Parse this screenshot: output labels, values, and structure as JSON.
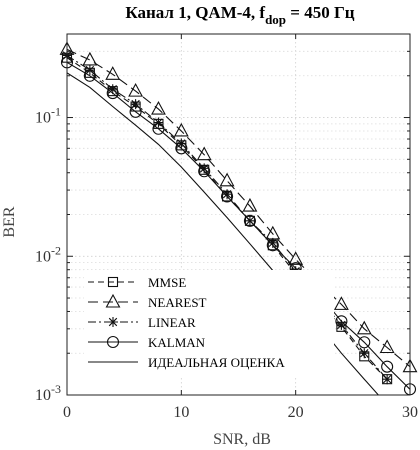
{
  "chart_data": {
    "type": "line",
    "title_main": "Канал 1, QAM-4, f",
    "title_sub": "dop",
    "title_tail": " = 450 Гц",
    "xlabel": "SNR, dB",
    "ylabel": "BER",
    "xlim": [
      0,
      30
    ],
    "ylim": [
      0.001,
      0.4
    ],
    "yscale": "log",
    "grid": true,
    "legend_position": "bottom-left",
    "x_ticks": [
      "0",
      "10",
      "20",
      "30"
    ],
    "y_ticks": [
      {
        "base": "10",
        "exp": "-1"
      },
      {
        "base": "10",
        "exp": "-2"
      },
      {
        "base": "10",
        "exp": "-3"
      }
    ],
    "series": [
      {
        "name": "MMSE",
        "marker": "square",
        "dash": "dash",
        "x": [
          0,
          2,
          4,
          6,
          8,
          10,
          12,
          14,
          16,
          18,
          20,
          22,
          24,
          26,
          28
        ],
        "y": [
          0.27,
          0.21,
          0.155,
          0.12,
          0.09,
          0.063,
          0.042,
          0.027,
          0.018,
          0.012,
          0.0075,
          0.0047,
          0.0031,
          0.0019,
          0.0013
        ]
      },
      {
        "name": "NEAREST",
        "marker": "triangle",
        "dash": "longdash",
        "x": [
          0,
          2,
          4,
          6,
          8,
          10,
          12,
          14,
          16,
          18,
          20,
          22,
          24,
          26,
          28,
          30
        ],
        "y": [
          0.31,
          0.26,
          0.205,
          0.155,
          0.115,
          0.08,
          0.054,
          0.035,
          0.023,
          0.0145,
          0.0095,
          0.0065,
          0.0045,
          0.003,
          0.0022,
          0.0016
        ]
      },
      {
        "name": "LINEAR",
        "marker": "star",
        "dash": "dashdot",
        "x": [
          0,
          2,
          4,
          6,
          8,
          10,
          12,
          14,
          16,
          18,
          20,
          22,
          24,
          26,
          28
        ],
        "y": [
          0.28,
          0.22,
          0.16,
          0.125,
          0.092,
          0.065,
          0.043,
          0.028,
          0.018,
          0.0125,
          0.0078,
          0.005,
          0.0032,
          0.002,
          0.0013
        ]
      },
      {
        "name": "KALMAN",
        "marker": "circle",
        "dash": "solid",
        "x": [
          0,
          2,
          4,
          6,
          8,
          10,
          12,
          14,
          16,
          18,
          20,
          22,
          24,
          26,
          28,
          30
        ],
        "y": [
          0.25,
          0.2,
          0.15,
          0.11,
          0.083,
          0.06,
          0.041,
          0.027,
          0.018,
          0.012,
          0.0082,
          0.0054,
          0.0034,
          0.0024,
          0.0016,
          0.0011
        ]
      },
      {
        "name": "ИДЕАЛЬНАЯ ОЦЕНКА",
        "marker": "none",
        "dash": "solid",
        "x": [
          0,
          2,
          4,
          6,
          8,
          10,
          12,
          14,
          16,
          18,
          20,
          22,
          24,
          26,
          28
        ],
        "y": [
          0.21,
          0.165,
          0.12,
          0.088,
          0.064,
          0.044,
          0.029,
          0.019,
          0.0123,
          0.0079,
          0.005,
          0.0032,
          0.002,
          0.0013,
          0.00085
        ]
      }
    ]
  }
}
